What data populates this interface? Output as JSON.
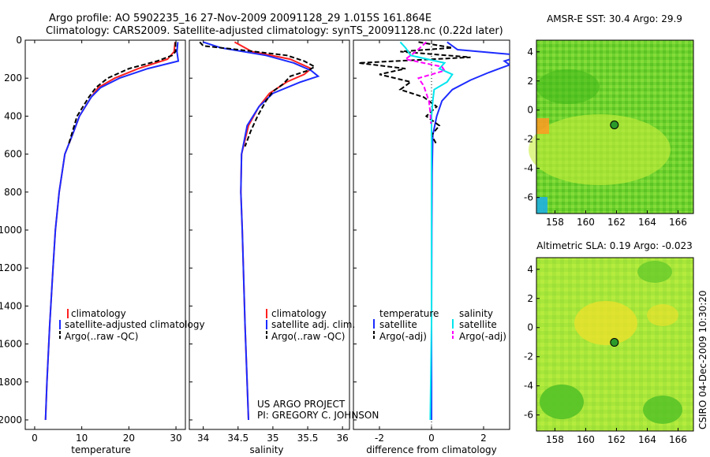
{
  "header": {
    "line1": "Argo profile: AO 5902235_16 27-Nov-2009 20091128_29 1.015S 161.864E",
    "line2": "Climatology: CARS2009. Satellite-adjusted climatology: synTS_20091128.nc (0.22d later)"
  },
  "credit": {
    "project": "US ARGO PROJECT",
    "pi": "PI: GREGORY C. JOHNSON",
    "stamp": "CSIRO 04-Dec-2009 10:30:20"
  },
  "colors": {
    "climatology": "#ff2020",
    "satellite": "#1c2bff",
    "argo": "#000000",
    "satellite_salinity": "#00e5ee",
    "argo_salinity_diff": "#ff00ff",
    "float_marker": "#2a9a2a"
  },
  "chart_data": [
    {
      "id": "temperature",
      "type": "line",
      "xlabel": "temperature",
      "ylabel": "",
      "xlim": [
        -2,
        32
      ],
      "ylim": [
        2050,
        0
      ],
      "xticks": [
        0,
        10,
        20,
        30
      ],
      "yticks": [
        0,
        200,
        400,
        600,
        800,
        1000,
        1200,
        1400,
        1600,
        1800,
        2000
      ],
      "legend": [
        "climatology",
        "satellite-adjusted climatology",
        "Argo(..raw -QC)"
      ],
      "series": [
        {
          "name": "climatology",
          "color": "#ff2020",
          "depth": [
            10,
            60,
            100,
            150,
            200,
            250,
            300,
            400,
            500,
            600,
            800,
            1000,
            1200,
            1500,
            1800,
            2000
          ],
          "values": [
            29.8,
            29.6,
            28.2,
            22,
            17,
            13.5,
            12,
            9.5,
            8,
            6.4,
            5.2,
            4.4,
            3.9,
            3.2,
            2.6,
            2.3
          ]
        },
        {
          "name": "satellite-adjusted climatology",
          "color": "#1c2bff",
          "depth": [
            10,
            60,
            110,
            150,
            200,
            250,
            300,
            400,
            500,
            600,
            800,
            1000,
            1200,
            1500,
            1800,
            2000
          ],
          "values": [
            30.4,
            30.2,
            30.5,
            24,
            18,
            14,
            12,
            9.5,
            8,
            6.4,
            5.2,
            4.4,
            3.9,
            3.2,
            2.6,
            2.3
          ]
        },
        {
          "name": "Argo(..raw -QC)",
          "color": "#000000",
          "depth": [
            10,
            60,
            80,
            110,
            150,
            200,
            250,
            300,
            400,
            500,
            550
          ],
          "values": [
            29.9,
            29.9,
            29.2,
            26,
            20,
            15.5,
            13,
            11.5,
            9,
            7.8,
            7.2
          ]
        }
      ]
    },
    {
      "id": "salinity",
      "type": "line",
      "xlabel": "salinity",
      "ylabel": "",
      "xlim": [
        33.8,
        36.1
      ],
      "ylim": [
        2050,
        0
      ],
      "xticks": [
        34,
        34.5,
        35,
        35.5,
        36
      ],
      "legend": [
        "climatology",
        "satellite adj. clim.",
        "Argo(..raw -QC)"
      ],
      "series": [
        {
          "name": "climatology",
          "color": "#ff2020",
          "depth": [
            10,
            60,
            100,
            150,
            180,
            220,
            280,
            350,
            450,
            600,
            800,
            1000,
            1500,
            2000
          ],
          "values": [
            34.45,
            34.7,
            35.25,
            35.55,
            35.45,
            35.2,
            34.95,
            34.8,
            34.65,
            34.55,
            34.54,
            34.56,
            34.6,
            34.65
          ]
        },
        {
          "name": "satellite adj. clim.",
          "color": "#1c2bff",
          "depth": [
            10,
            40,
            80,
            120,
            160,
            190,
            220,
            280,
            350,
            450,
            600,
            800,
            1000,
            1500,
            2000
          ],
          "values": [
            34.0,
            34.25,
            34.9,
            35.3,
            35.55,
            35.65,
            35.4,
            35.0,
            34.8,
            34.63,
            34.55,
            34.54,
            34.56,
            34.6,
            34.65
          ]
        },
        {
          "name": "Argo(..raw -QC)",
          "color": "#000000",
          "depth": [
            10,
            30,
            50,
            80,
            110,
            140,
            160,
            190,
            230,
            270,
            320,
            400,
            480,
            560
          ],
          "values": [
            33.95,
            34.0,
            34.5,
            35.2,
            35.45,
            35.6,
            35.5,
            35.25,
            35.15,
            35.0,
            34.9,
            34.78,
            34.68,
            34.6
          ]
        }
      ]
    },
    {
      "id": "difference",
      "type": "line",
      "xlabel": "difference from climatology",
      "ylabel": "",
      "xlim": [
        -3,
        3
      ],
      "ylim": [
        2050,
        0
      ],
      "xticks": [
        -2,
        0,
        2
      ],
      "legend_temperature": [
        "temperature",
        "satellite",
        "Argo(-adj)"
      ],
      "legend_salinity": [
        "salinity",
        "satellite",
        "Argo(-adj)"
      ],
      "series": [
        {
          "name": "temperature satellite",
          "color": "#1c2bff",
          "depth": [
            10,
            50,
            80,
            110,
            130,
            170,
            210,
            260,
            320,
            400,
            500,
            700,
            1000,
            1500,
            2000
          ],
          "values": [
            0.6,
            1.0,
            3.5,
            2.8,
            3.0,
            2.2,
            1.5,
            0.8,
            0.4,
            0.2,
            0.05,
            0.02,
            0.01,
            0.0,
            0.0
          ]
        },
        {
          "name": "temperature Argo(-adj)",
          "color": "#000000",
          "depth": [
            10,
            40,
            60,
            90,
            120,
            150,
            180,
            220,
            260,
            300,
            350,
            400,
            450,
            500,
            550
          ],
          "values": [
            -0.5,
            0.8,
            -1.2,
            1.5,
            -2.8,
            -1.0,
            -2.0,
            -0.8,
            -1.2,
            -0.3,
            0.2,
            -0.2,
            0.3,
            0.0,
            0.2
          ]
        },
        {
          "name": "salinity satellite",
          "color": "#00e5ee",
          "depth": [
            10,
            40,
            80,
            120,
            150,
            180,
            220,
            260,
            320,
            400,
            500,
            700,
            1000,
            1500,
            2000
          ],
          "values": [
            -1.2,
            -1.0,
            -0.8,
            0.5,
            0.3,
            0.8,
            0.6,
            0.1,
            0.05,
            0.0,
            0.0,
            0.0,
            0.0,
            0.0,
            -0.05
          ]
        },
        {
          "name": "salinity Argo(-adj)",
          "color": "#ff00ff",
          "depth": [
            10,
            60,
            100,
            140,
            160,
            200,
            240,
            280,
            320,
            380,
            440
          ],
          "values": [
            -0.2,
            -0.6,
            -1.0,
            0.4,
            0.5,
            -0.5,
            -0.3,
            -0.2,
            -0.1,
            -0.05,
            -0.02
          ]
        }
      ]
    },
    {
      "id": "sst-map",
      "type": "heatmap",
      "title": "AMSR-E SST: 30.4 Argo: 29.9",
      "xticks": [
        158,
        160,
        162,
        164,
        166
      ],
      "yticks": [
        4,
        2,
        0,
        -2,
        -4,
        -6
      ],
      "xlim": [
        156.8,
        167
      ],
      "ylim": [
        -7.1,
        4.8
      ],
      "float_position": {
        "lon": 161.864,
        "lat": -1.015
      }
    },
    {
      "id": "sla-map",
      "type": "heatmap",
      "title": "Altimetric SLA: 0.19 Argo: -0.023",
      "xticks": [
        158,
        160,
        162,
        164,
        166
      ],
      "yticks": [
        4,
        2,
        0,
        -2,
        -4,
        -6
      ],
      "xlim": [
        156.8,
        167
      ],
      "ylim": [
        -7.1,
        4.8
      ],
      "float_position": {
        "lon": 161.864,
        "lat": -1.015
      }
    }
  ]
}
